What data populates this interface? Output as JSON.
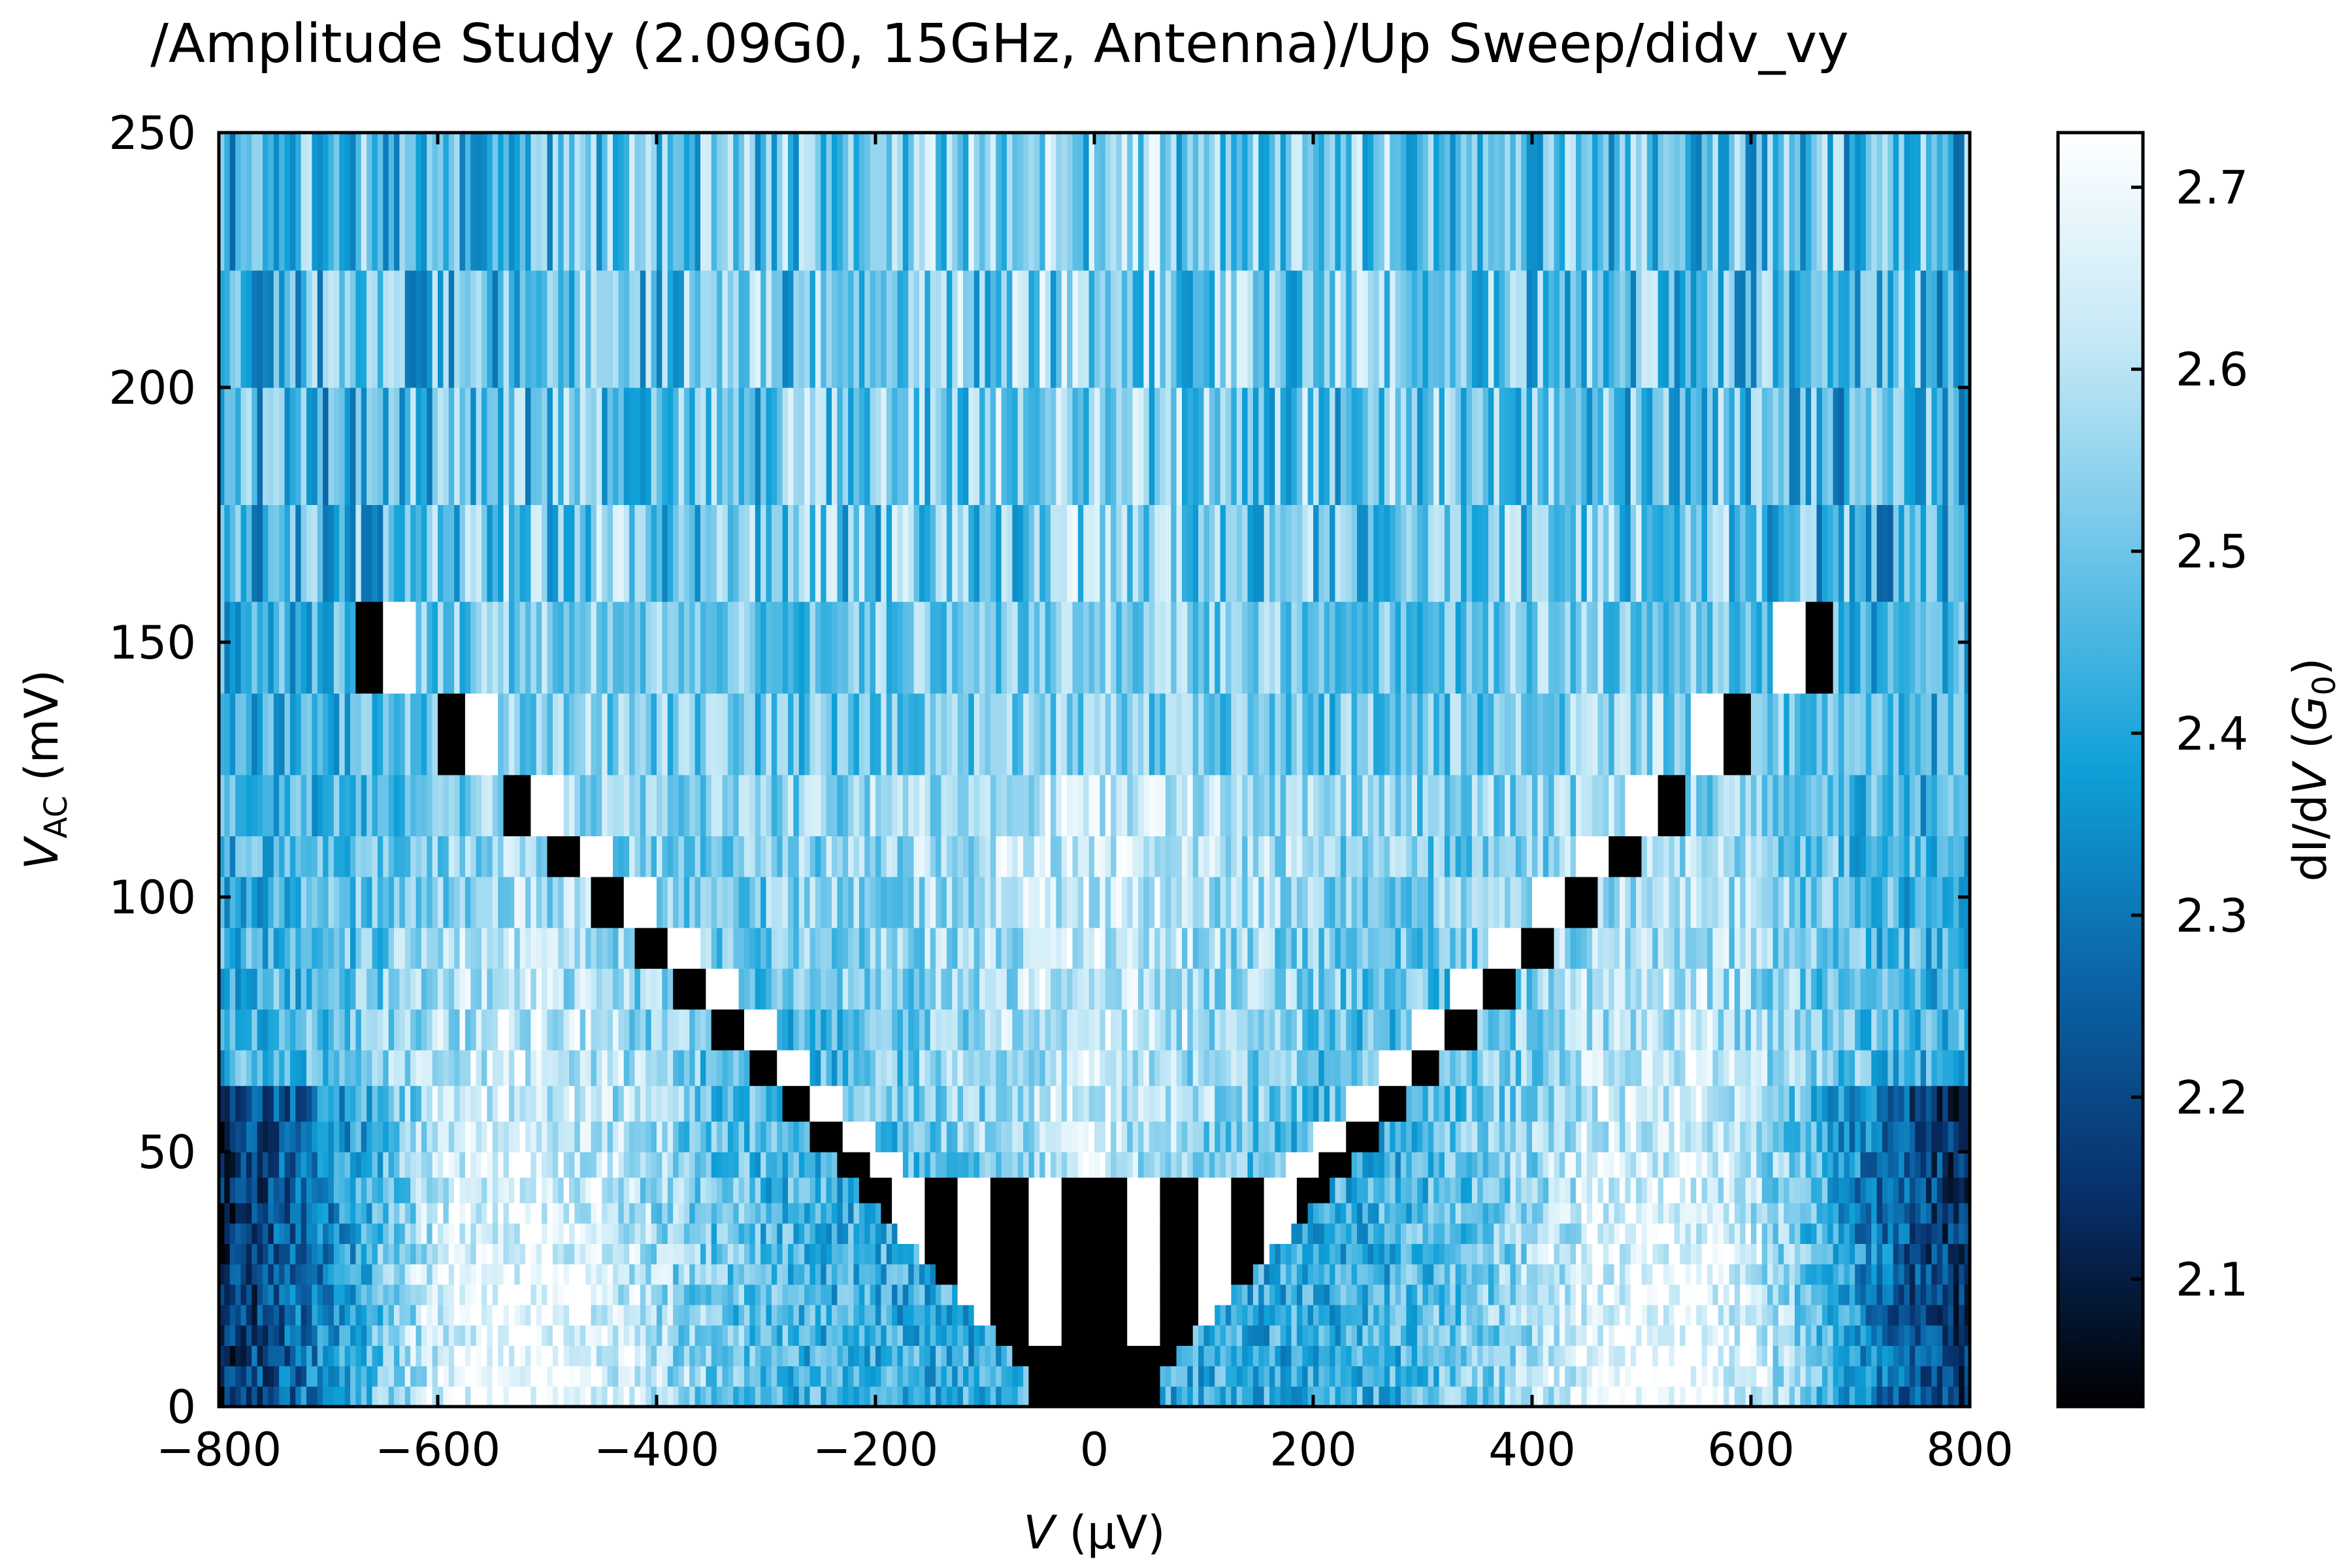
{
  "chart_data": {
    "type": "heatmap",
    "title": "/Amplitude Study (2.09G0, 15GHz, Antenna)/Up Sweep/didv_vy",
    "xlabel": {
      "italic": "V",
      "rest": " (μV)"
    },
    "ylabel": {
      "italic": "V",
      "sub": "AC",
      "rest": " (mV)"
    },
    "colorbar_label": {
      "pre": "dI/d",
      "italic_v": "V",
      "mid": " (",
      "italic_g": "G",
      "sub": "0",
      "post": ")"
    },
    "xlim": [
      -800,
      800
    ],
    "ylim": [
      0,
      250
    ],
    "clim": [
      2.03,
      2.73
    ],
    "x_ticks": [
      -800,
      -600,
      -400,
      -200,
      0,
      200,
      400,
      600,
      800
    ],
    "x_tick_labels": [
      "−800",
      "−600",
      "−400",
      "−200",
      "0",
      "200",
      "400",
      "600",
      "800"
    ],
    "y_ticks": [
      0,
      50,
      100,
      150,
      200,
      250
    ],
    "y_tick_labels": [
      "0",
      "50",
      "100",
      "150",
      "200",
      "250"
    ],
    "colorbar_ticks": [
      2.1,
      2.2,
      2.3,
      2.4,
      2.5,
      2.6,
      2.7
    ],
    "colorbar_tick_labels": [
      "2.1",
      "2.2",
      "2.3",
      "2.4",
      "2.5",
      "2.6",
      "2.7"
    ],
    "colormap": [
      "#000000",
      "#08306b",
      "#0b63a5",
      "#0fa0d8",
      "#6cc4e8",
      "#c4e8f6",
      "#ffffff"
    ],
    "grid": false,
    "vac_rows_mV": [
      0,
      4,
      8,
      12,
      16,
      20,
      24,
      28,
      32,
      36,
      40,
      45,
      50,
      56,
      63,
      70,
      78,
      86,
      94,
      104,
      112,
      124,
      140,
      158,
      177,
      200,
      223,
      250
    ],
    "v_columns": {
      "start": -800,
      "stop": 800,
      "count": 320
    },
    "pattern": {
      "background_base": 2.42,
      "bright_region_peak_V": 520,
      "bright_region_gain": 0.32,
      "edge_darkening_V": 600,
      "noise_amplitude": 0.25,
      "dark_stripe_slope_uV_per_mV": 4.35,
      "photon_peak_spacing_uV": 62,
      "saturated_value_low": 2.03,
      "saturated_value_high": 2.73
    }
  }
}
